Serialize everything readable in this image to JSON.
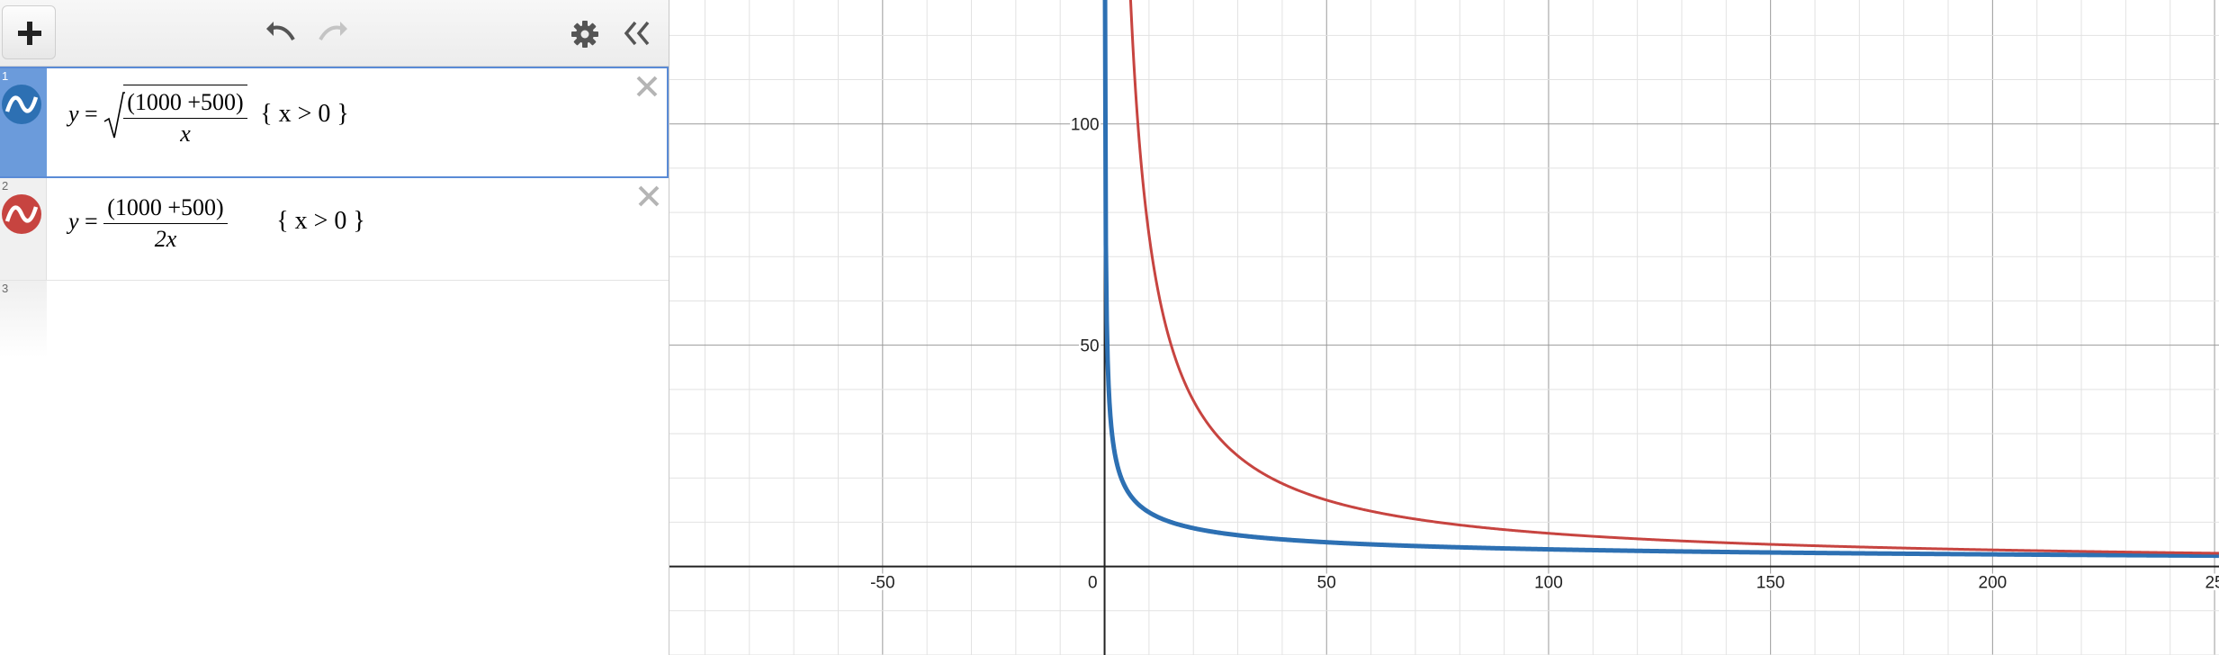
{
  "toolbar": {
    "add_button_icon": "plus-icon",
    "undo_icon": "undo-icon",
    "redo_icon": "redo-icon",
    "settings_icon": "gear-icon",
    "collapse_icon": "double-chevron-left-icon"
  },
  "expressions": [
    {
      "index": "1",
      "color": "#2d70b3",
      "selected": true,
      "lhs": "y",
      "numerator": "(1000 +500)",
      "denominator": "x",
      "radical": true,
      "condition": "{ x > 0 }"
    },
    {
      "index": "2",
      "color": "#c74440",
      "selected": false,
      "lhs": "y",
      "numerator": "(1000 +500)",
      "denominator": "2x",
      "radical": false,
      "condition": "{ x > 0 }"
    },
    {
      "index": "3"
    }
  ],
  "graph": {
    "x_ticks": [
      "-50",
      "0",
      "50",
      "100",
      "150",
      "200",
      "25"
    ],
    "y_ticks": [
      "50",
      "100"
    ],
    "x_min": -98,
    "x_max": 251,
    "y_min": -20,
    "y_max": 128,
    "grid": true
  }
}
